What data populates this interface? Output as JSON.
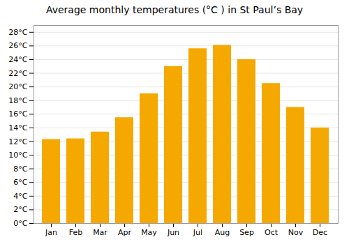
{
  "chart_data": {
    "type": "bar",
    "title": "Average monthly temperatures (°C ) in St Paul’s Bay",
    "categories": [
      "Jan",
      "Feb",
      "Mar",
      "Apr",
      "May",
      "Jun",
      "Jul",
      "Aug",
      "Sep",
      "Oct",
      "Nov",
      "Dec"
    ],
    "values": [
      12.3,
      12.4,
      13.4,
      15.5,
      19.0,
      23.0,
      25.6,
      26.1,
      24.0,
      20.5,
      17.0,
      14.0
    ],
    "color": "#F5A800",
    "ylim": [
      0,
      29
    ],
    "yticks": [
      {
        "value": 0,
        "label": "0°C"
      },
      {
        "value": 2,
        "label": "2°C"
      },
      {
        "value": 4,
        "label": "4°C"
      },
      {
        "value": 6,
        "label": "6°C"
      },
      {
        "value": 8,
        "label": "8°C"
      },
      {
        "value": 10,
        "label": "10°C"
      },
      {
        "value": 12,
        "label": "12°C"
      },
      {
        "value": 14,
        "label": "14°C"
      },
      {
        "value": 16,
        "label": "16°C"
      },
      {
        "value": 18,
        "label": "18°C"
      },
      {
        "value": 20,
        "label": "20°C"
      },
      {
        "value": 22,
        "label": "22°C"
      },
      {
        "value": 24,
        "label": "24°C"
      },
      {
        "value": 26,
        "label": "26°C"
      },
      {
        "value": 28,
        "label": "28°C"
      }
    ],
    "grid": true
  }
}
